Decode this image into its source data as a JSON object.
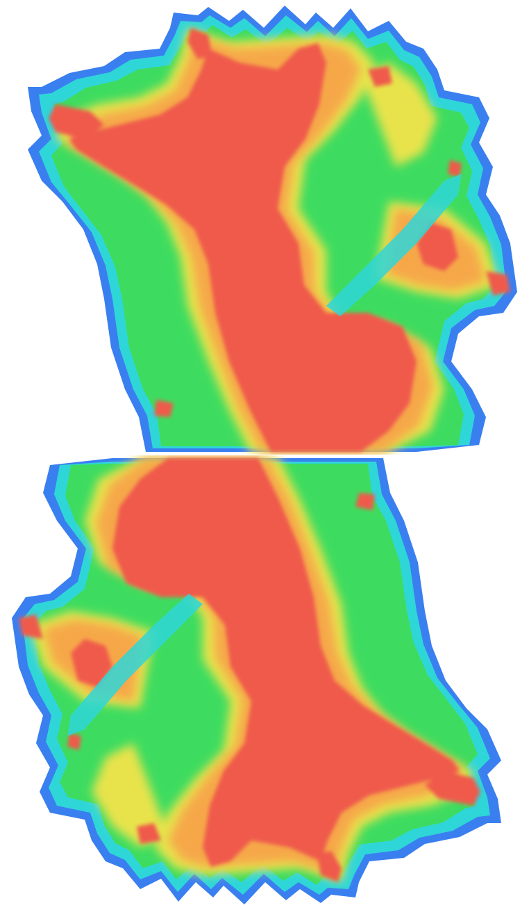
{
  "figure": {
    "panels": [
      {
        "id": "top",
        "orientation": "upright"
      },
      {
        "id": "bottom",
        "orientation": "rotated-180"
      }
    ]
  },
  "legend_colors": {
    "high": "#ef5a4c",
    "mid_high": "#f6a84a",
    "mid": "#e8e34b",
    "mid_low": "#3ddc60",
    "low": "#2fd6d8",
    "edge": "#3a7ff0"
  }
}
